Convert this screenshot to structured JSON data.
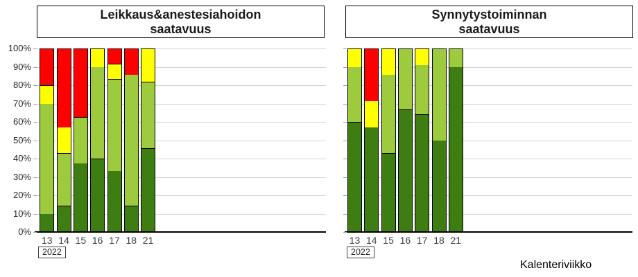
{
  "colors": {
    "dark_green": "#3e7d11",
    "light_green": "#9ecb3d",
    "yellow": "#ffff00",
    "red": "#ff0000",
    "gridline": "#d4d4d4",
    "axis": "#000000"
  },
  "footer": {
    "axis_label": "Kalenteriviikko"
  },
  "chart_data": [
    {
      "type": "bar",
      "stacked": true,
      "unit": "percent",
      "title": "Leikkaus&anestesiahoidon saatavuus",
      "title_lines": [
        "Leikkaus&anestesiahoidon",
        "saatavuus"
      ],
      "categories": [
        "13",
        "14",
        "15",
        "16",
        "17",
        "18",
        "21"
      ],
      "x_group_label": "2022",
      "ylim": [
        0,
        100
      ],
      "grid": true,
      "legend": "none",
      "y_axis_labels_visible": true,
      "y_ticks": [
        "0%",
        "10%",
        "20%",
        "30%",
        "40%",
        "50%",
        "60%",
        "70%",
        "80%",
        "90%",
        "100%"
      ],
      "series": [
        {
          "name": "dark-green",
          "color_key": "dark_green",
          "values": [
            10,
            14.3,
            37.5,
            40,
            33.3,
            14.3,
            45.5
          ]
        },
        {
          "name": "light-green",
          "color_key": "light_green",
          "values": [
            60,
            28.6,
            25,
            50,
            50,
            71.4,
            36.3
          ]
        },
        {
          "name": "yellow",
          "color_key": "yellow",
          "values": [
            10,
            14.2,
            0,
            10,
            8.4,
            0,
            18.2
          ]
        },
        {
          "name": "red",
          "color_key": "red",
          "values": [
            20,
            42.9,
            37.5,
            0,
            8.3,
            14.3,
            0
          ]
        }
      ]
    },
    {
      "type": "bar",
      "stacked": true,
      "unit": "percent",
      "title": "Synnytystoiminnan saatavuus",
      "title_lines": [
        "Synnytystoiminnan",
        "saatavuus"
      ],
      "categories": [
        "13",
        "14",
        "15",
        "16",
        "17",
        "18",
        "21"
      ],
      "x_group_label": "2022",
      "ylim": [
        0,
        100
      ],
      "grid": true,
      "legend": "none",
      "y_axis_labels_visible": false,
      "y_ticks": [
        "0%",
        "10%",
        "20%",
        "30%",
        "40%",
        "50%",
        "60%",
        "70%",
        "80%",
        "90%",
        "100%"
      ],
      "series": [
        {
          "name": "dark-green",
          "color_key": "dark_green",
          "values": [
            60,
            57.1,
            42.9,
            66.7,
            64,
            50,
            90
          ]
        },
        {
          "name": "light-green",
          "color_key": "light_green",
          "values": [
            30,
            0,
            42.8,
            33.3,
            27,
            50,
            10
          ]
        },
        {
          "name": "yellow",
          "color_key": "yellow",
          "values": [
            10,
            14.3,
            14.3,
            0,
            9,
            0,
            0
          ]
        },
        {
          "name": "red",
          "color_key": "red",
          "values": [
            0,
            28.6,
            0,
            0,
            0,
            0,
            0
          ]
        }
      ]
    }
  ]
}
